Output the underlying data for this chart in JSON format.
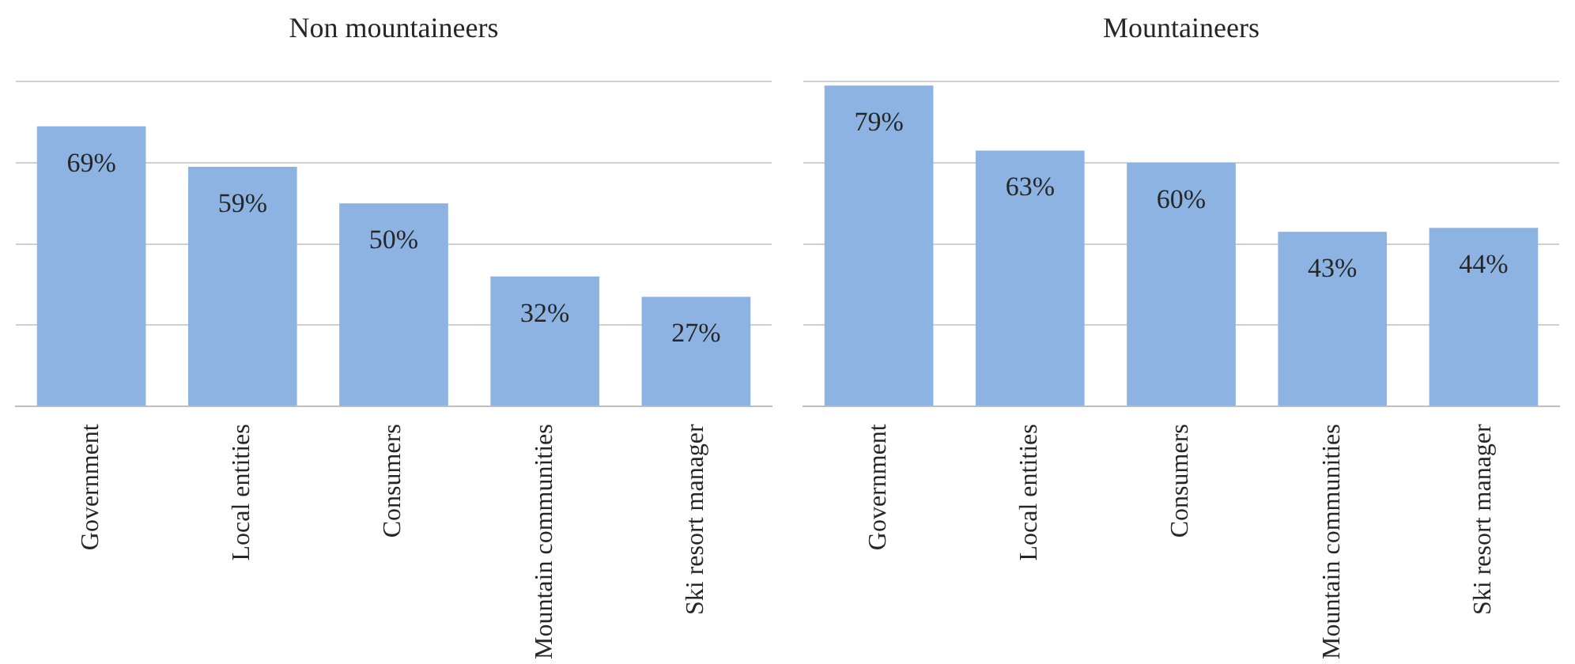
{
  "chart_data": [
    {
      "type": "bar",
      "title": "Non mountaineers",
      "categories": [
        "Government",
        "Local entities",
        "Consumers",
        "Mountain communities",
        "Ski resort manager"
      ],
      "values": [
        69,
        59,
        50,
        32,
        27
      ],
      "value_labels": [
        "69%",
        "59%",
        "50%",
        "32%",
        "27%"
      ],
      "color": "#8db3e2",
      "ylim": [
        0,
        80
      ],
      "yticks": [
        {
          "value": 0,
          "label": null
        },
        {
          "value": 20,
          "label": null
        },
        {
          "value": 40,
          "label": null
        },
        {
          "value": 60,
          "label": null
        },
        {
          "value": 80,
          "label": null
        }
      ],
      "tick_labels": "x",
      "grid": "y",
      "legend": false
    },
    {
      "type": "bar",
      "title": "Mountaineers",
      "categories": [
        "Government",
        "Local entities",
        "Consumers",
        "Mountain communities",
        "Ski resort manager"
      ],
      "values": [
        79,
        63,
        60,
        43,
        44
      ],
      "value_labels": [
        "79%",
        "63%",
        "60%",
        "43%",
        "44%"
      ],
      "color": "#8db3e2",
      "ylim": [
        0,
        80
      ],
      "yticks": [
        {
          "value": 0,
          "label": null
        },
        {
          "value": 20,
          "label": null
        },
        {
          "value": 40,
          "label": null
        },
        {
          "value": 60,
          "label": null
        },
        {
          "value": 80,
          "label": null
        }
      ],
      "tick_labels": "x",
      "grid": "y",
      "legend": false
    }
  ]
}
